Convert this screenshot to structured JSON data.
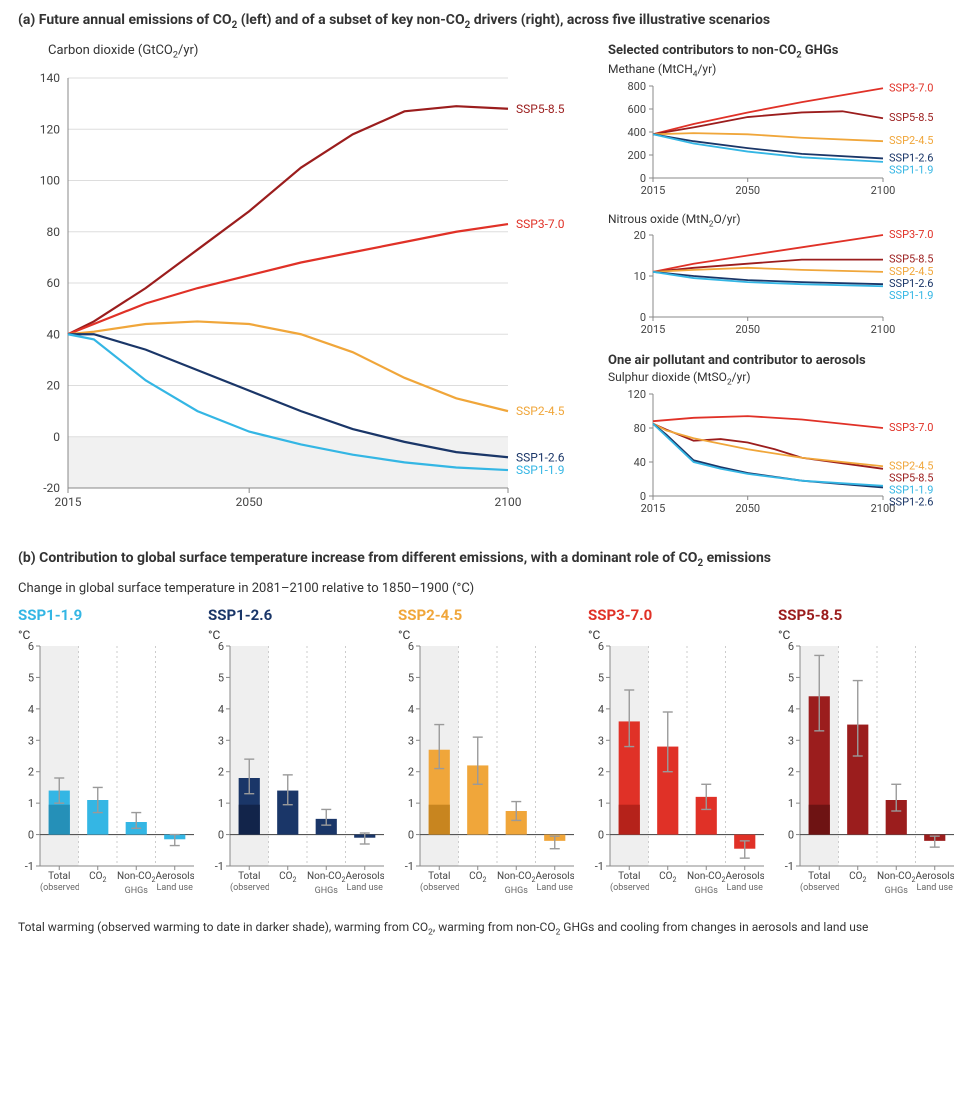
{
  "colors": {
    "ssp119": "#34b6e4",
    "ssp126": "#1a3668",
    "ssp245": "#f0a63a",
    "ssp370": "#e03127",
    "ssp585": "#9b1d1d",
    "axis": "#888888",
    "grid": "#dddddd",
    "neg_band": "#f1f1f1",
    "bar_bg_band": "#efefef",
    "bar_divider": "#cccccc",
    "error_bar": "#9a9a9a",
    "observed_shade": {
      "ssp119": "#2590b8",
      "ssp126": "#12244a",
      "ssp245": "#c8851f",
      "ssp370": "#b5221a",
      "ssp585": "#6e1313"
    }
  },
  "section_a": {
    "title_html": "(a) Future annual emissions of CO<sub>2</sub> (left) and of a subset of key non-CO<sub>2</sub> drivers (right), across five illustrative scenarios",
    "co2_chart": {
      "title_html": "Carbon dioxide (GtCO<sub>2</sub>/yr)",
      "xlim": [
        2015,
        2100
      ],
      "ylim": [
        -20,
        140
      ],
      "xticks": [
        2015,
        2050,
        2100
      ],
      "yticks": [
        -20,
        0,
        20,
        40,
        60,
        80,
        100,
        120,
        140
      ],
      "series": [
        {
          "id": "ssp585",
          "label": "SSP5-8.5",
          "points": [
            [
              2015,
              40
            ],
            [
              2020,
              45
            ],
            [
              2030,
              58
            ],
            [
              2040,
              73
            ],
            [
              2050,
              88
            ],
            [
              2060,
              105
            ],
            [
              2070,
              118
            ],
            [
              2080,
              127
            ],
            [
              2090,
              129
            ],
            [
              2100,
              128
            ]
          ]
        },
        {
          "id": "ssp370",
          "label": "SSP3-7.0",
          "points": [
            [
              2015,
              40
            ],
            [
              2020,
              44
            ],
            [
              2030,
              52
            ],
            [
              2040,
              58
            ],
            [
              2050,
              63
            ],
            [
              2060,
              68
            ],
            [
              2070,
              72
            ],
            [
              2080,
              76
            ],
            [
              2090,
              80
            ],
            [
              2100,
              83
            ]
          ]
        },
        {
          "id": "ssp245",
          "label": "SSP2-4.5",
          "points": [
            [
              2015,
              40
            ],
            [
              2020,
              41
            ],
            [
              2030,
              44
            ],
            [
              2040,
              45
            ],
            [
              2050,
              44
            ],
            [
              2060,
              40
            ],
            [
              2070,
              33
            ],
            [
              2080,
              23
            ],
            [
              2090,
              15
            ],
            [
              2100,
              10
            ]
          ]
        },
        {
          "id": "ssp126",
          "label": "SSP1-2.6",
          "points": [
            [
              2015,
              40
            ],
            [
              2020,
              40
            ],
            [
              2030,
              34
            ],
            [
              2040,
              26
            ],
            [
              2050,
              18
            ],
            [
              2060,
              10
            ],
            [
              2070,
              3
            ],
            [
              2080,
              -2
            ],
            [
              2090,
              -6
            ],
            [
              2100,
              -8
            ]
          ]
        },
        {
          "id": "ssp119",
          "label": "SSP1-1.9",
          "points": [
            [
              2015,
              40
            ],
            [
              2020,
              38
            ],
            [
              2030,
              22
            ],
            [
              2040,
              10
            ],
            [
              2050,
              2
            ],
            [
              2060,
              -3
            ],
            [
              2070,
              -7
            ],
            [
              2080,
              -10
            ],
            [
              2090,
              -12
            ],
            [
              2100,
              -13
            ]
          ]
        }
      ]
    },
    "right_header_html": "Selected contributors to non-CO<sub>2</sub> GHGs",
    "methane": {
      "title_html": "Methane (MtCH<sub>4</sub>/yr)",
      "xlim": [
        2015,
        2100
      ],
      "ylim": [
        0,
        800
      ],
      "xticks": [
        2015,
        2050,
        2100
      ],
      "yticks": [
        0,
        200,
        400,
        600,
        800
      ],
      "label_order": [
        "ssp370",
        "ssp585",
        "ssp245",
        "ssp126",
        "ssp119"
      ],
      "series": [
        {
          "id": "ssp370",
          "points": [
            [
              2015,
              380
            ],
            [
              2030,
              470
            ],
            [
              2050,
              570
            ],
            [
              2070,
              660
            ],
            [
              2100,
              780
            ]
          ]
        },
        {
          "id": "ssp585",
          "points": [
            [
              2015,
              380
            ],
            [
              2030,
              440
            ],
            [
              2050,
              530
            ],
            [
              2070,
              570
            ],
            [
              2085,
              580
            ],
            [
              2100,
              520
            ]
          ]
        },
        {
          "id": "ssp245",
          "points": [
            [
              2015,
              380
            ],
            [
              2030,
              390
            ],
            [
              2050,
              380
            ],
            [
              2070,
              350
            ],
            [
              2100,
              320
            ]
          ]
        },
        {
          "id": "ssp126",
          "points": [
            [
              2015,
              380
            ],
            [
              2030,
              320
            ],
            [
              2050,
              260
            ],
            [
              2070,
              210
            ],
            [
              2100,
              170
            ]
          ]
        },
        {
          "id": "ssp119",
          "points": [
            [
              2015,
              380
            ],
            [
              2030,
              300
            ],
            [
              2050,
              230
            ],
            [
              2070,
              180
            ],
            [
              2100,
              140
            ]
          ]
        }
      ]
    },
    "n2o": {
      "title_html": "Nitrous oxide (MtN<sub>2</sub>O/yr)",
      "xlim": [
        2015,
        2100
      ],
      "ylim": [
        0,
        20
      ],
      "xticks": [
        2015,
        2050,
        2100
      ],
      "yticks": [
        0,
        10,
        20
      ],
      "label_order": [
        "ssp370",
        "ssp585",
        "ssp245",
        "ssp126",
        "ssp119"
      ],
      "series": [
        {
          "id": "ssp370",
          "points": [
            [
              2015,
              11
            ],
            [
              2030,
              13
            ],
            [
              2050,
              15
            ],
            [
              2070,
              17
            ],
            [
              2100,
              20
            ]
          ]
        },
        {
          "id": "ssp585",
          "points": [
            [
              2015,
              11
            ],
            [
              2030,
              12
            ],
            [
              2050,
              13
            ],
            [
              2070,
              14
            ],
            [
              2100,
              14
            ]
          ]
        },
        {
          "id": "ssp245",
          "points": [
            [
              2015,
              11
            ],
            [
              2030,
              11.5
            ],
            [
              2050,
              12
            ],
            [
              2070,
              11.5
            ],
            [
              2100,
              11
            ]
          ]
        },
        {
          "id": "ssp126",
          "points": [
            [
              2015,
              11
            ],
            [
              2030,
              10
            ],
            [
              2050,
              9
            ],
            [
              2070,
              8.5
            ],
            [
              2100,
              8
            ]
          ]
        },
        {
          "id": "ssp119",
          "points": [
            [
              2015,
              11
            ],
            [
              2030,
              9.5
            ],
            [
              2050,
              8.5
            ],
            [
              2070,
              8
            ],
            [
              2100,
              7.5
            ]
          ]
        }
      ]
    },
    "aerosol_header": "One air pollutant and contributor to aerosols",
    "so2": {
      "title_html": "Sulphur dioxide (MtSO<sub>2</sub>/yr)",
      "xlim": [
        2015,
        2100
      ],
      "ylim": [
        0,
        120
      ],
      "xticks": [
        2015,
        2050,
        2100
      ],
      "yticks": [
        0,
        40,
        80,
        120
      ],
      "label_order": [
        "ssp370",
        "ssp245",
        "ssp585",
        "ssp119",
        "ssp126"
      ],
      "series": [
        {
          "id": "ssp370",
          "points": [
            [
              2015,
              88
            ],
            [
              2030,
              92
            ],
            [
              2050,
              94
            ],
            [
              2070,
              90
            ],
            [
              2100,
              80
            ]
          ]
        },
        {
          "id": "ssp585",
          "points": [
            [
              2015,
              85
            ],
            [
              2020,
              78
            ],
            [
              2030,
              65
            ],
            [
              2040,
              67
            ],
            [
              2050,
              63
            ],
            [
              2060,
              55
            ],
            [
              2070,
              45
            ],
            [
              2100,
              32
            ]
          ]
        },
        {
          "id": "ssp245",
          "points": [
            [
              2015,
              85
            ],
            [
              2020,
              77
            ],
            [
              2030,
              68
            ],
            [
              2050,
              55
            ],
            [
              2070,
              45
            ],
            [
              2100,
              35
            ]
          ]
        },
        {
          "id": "ssp126",
          "points": [
            [
              2015,
              85
            ],
            [
              2020,
              72
            ],
            [
              2030,
              42
            ],
            [
              2040,
              34
            ],
            [
              2050,
              27
            ],
            [
              2070,
              18
            ],
            [
              2100,
              10
            ]
          ]
        },
        {
          "id": "ssp119",
          "points": [
            [
              2015,
              85
            ],
            [
              2020,
              70
            ],
            [
              2030,
              40
            ],
            [
              2040,
              32
            ],
            [
              2050,
              26
            ],
            [
              2070,
              18
            ],
            [
              2100,
              12
            ]
          ]
        }
      ]
    }
  },
  "section_b": {
    "title_html": "(b) Contribution to global surface temperature increase from different emissions, with a dominant role of CO<sub>2</sub> emissions",
    "subtitle": "Change in global surface temperature in 2081–2100 relative to 1850–1900 (°C)",
    "labels": {
      "ssp119": "SSP1-1.9",
      "ssp126": "SSP1-2.6",
      "ssp245": "SSP2-4.5",
      "ssp370": "SSP3-7.0",
      "ssp585": "SSP5-8.5"
    },
    "ylim": [
      -1,
      6
    ],
    "yticks": [
      -1,
      0,
      1,
      2,
      3,
      4,
      5,
      6
    ],
    "yunit": "°C",
    "categories": [
      "Total",
      "CO2",
      "NonCO2",
      "Aerosols"
    ],
    "cat_labels_html": {
      "Total": {
        "l1": "Total",
        "l2": "(observed)"
      },
      "CO2": {
        "l1": "CO<sub>2</sub>",
        "l2": ""
      },
      "NonCO2": {
        "l1": "Non-CO<sub>2</sub>",
        "l2": "GHGs"
      },
      "Aerosols": {
        "l1": "Aerosols",
        "l2": "Land use"
      }
    },
    "observed_warming": 0.95,
    "panels": [
      {
        "id": "ssp119",
        "bars": {
          "Total": {
            "v": 1.4,
            "lo": 1.0,
            "hi": 1.8
          },
          "CO2": {
            "v": 1.1,
            "lo": 0.7,
            "hi": 1.5
          },
          "NonCO2": {
            "v": 0.4,
            "lo": 0.2,
            "hi": 0.7
          },
          "Aerosols": {
            "v": -0.15,
            "lo": -0.35,
            "hi": 0.0
          }
        }
      },
      {
        "id": "ssp126",
        "bars": {
          "Total": {
            "v": 1.8,
            "lo": 1.3,
            "hi": 2.4
          },
          "CO2": {
            "v": 1.4,
            "lo": 0.95,
            "hi": 1.9
          },
          "NonCO2": {
            "v": 0.5,
            "lo": 0.3,
            "hi": 0.8
          },
          "Aerosols": {
            "v": -0.1,
            "lo": -0.3,
            "hi": 0.05
          }
        }
      },
      {
        "id": "ssp245",
        "bars": {
          "Total": {
            "v": 2.7,
            "lo": 2.1,
            "hi": 3.5
          },
          "CO2": {
            "v": 2.2,
            "lo": 1.6,
            "hi": 3.1
          },
          "NonCO2": {
            "v": 0.75,
            "lo": 0.45,
            "hi": 1.05
          },
          "Aerosols": {
            "v": -0.2,
            "lo": -0.45,
            "hi": -0.05
          }
        }
      },
      {
        "id": "ssp370",
        "bars": {
          "Total": {
            "v": 3.6,
            "lo": 2.8,
            "hi": 4.6
          },
          "CO2": {
            "v": 2.8,
            "lo": 2.0,
            "hi": 3.9
          },
          "NonCO2": {
            "v": 1.2,
            "lo": 0.8,
            "hi": 1.6
          },
          "Aerosols": {
            "v": -0.45,
            "lo": -0.75,
            "hi": -0.2
          }
        }
      },
      {
        "id": "ssp585",
        "bars": {
          "Total": {
            "v": 4.4,
            "lo": 3.3,
            "hi": 5.7
          },
          "CO2": {
            "v": 3.5,
            "lo": 2.5,
            "hi": 4.9
          },
          "NonCO2": {
            "v": 1.1,
            "lo": 0.75,
            "hi": 1.6
          },
          "Aerosols": {
            "v": -0.2,
            "lo": -0.4,
            "hi": -0.05
          }
        }
      }
    ],
    "footer_html": "Total warming (observed warming to date in darker shade), warming from CO<sub>2</sub>, warming from non-CO<sub>2</sub> GHGs and cooling from changes in aerosols and land use"
  }
}
